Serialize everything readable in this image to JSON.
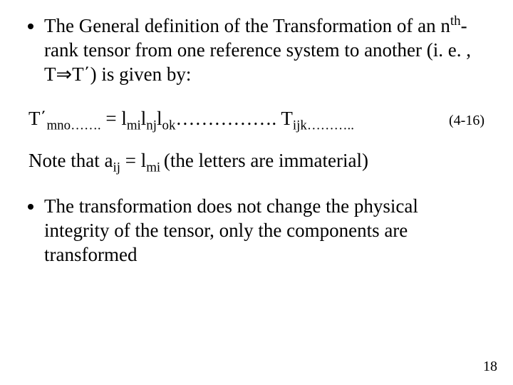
{
  "colors": {
    "background": "#ffffff",
    "text": "#000000"
  },
  "typography": {
    "family": "Times New Roman",
    "body_size_pt": 27,
    "eqnum_size_pt": 20,
    "pagenum_size_pt": 20
  },
  "bullet1": {
    "t1": "The General definition of the Transformation of an n",
    "sup1": "th",
    "t2": "-rank tensor from one reference system to another (i. e. , T",
    "arrow": "⇒",
    "t3": "T΄) is given by:"
  },
  "equation": {
    "lhs_T": "T΄",
    "lhs_sub": "mno…….",
    "eq": "  =  ",
    "r1": "l",
    "r1sub": "mi",
    "r2": "l",
    "r2sub": "nj",
    "r3": "l",
    "r3sub": "ok",
    "dots": "……………. ",
    "rhs_T": "T",
    "rhs_sub": "ijk………..",
    "number": "(4-16)"
  },
  "note": {
    "t1": "Note that a",
    "sub1": "ij",
    "t2": "  =  l",
    "sub2": "mi ",
    "t3": "(the letters are immaterial)"
  },
  "bullet2": " The transformation does not change the physical integrity of the tensor, only the components are transformed",
  "page_number": "18"
}
